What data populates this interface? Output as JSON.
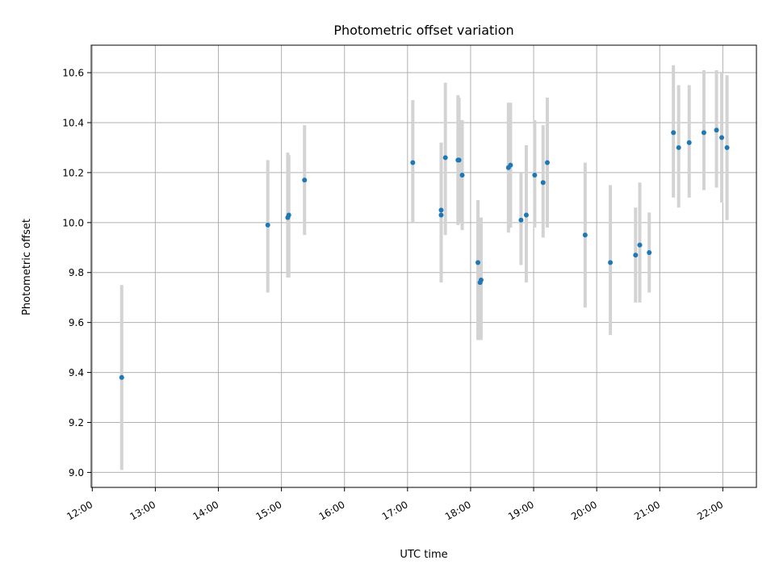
{
  "chart_data": {
    "type": "scatter",
    "title": "Photometric offset variation",
    "xlabel": "UTC time",
    "ylabel": "Photometric offset",
    "x_ticks": [
      "12:00",
      "13:00",
      "14:00",
      "15:00",
      "16:00",
      "17:00",
      "18:00",
      "19:00",
      "20:00",
      "21:00",
      "22:00"
    ],
    "y_ticks": [
      "9.0",
      "9.2",
      "9.4",
      "9.6",
      "9.8",
      "10.0",
      "10.2",
      "10.4",
      "10.6"
    ],
    "xlim": [
      "11:59",
      "22:32"
    ],
    "ylim": [
      8.94,
      10.71
    ],
    "grid": true,
    "colors": {
      "point": "#1f77b4",
      "errorbar": "#d3d3d3",
      "grid": "#b0b0b0"
    },
    "series": [
      {
        "points": [
          {
            "x": "12:28",
            "y": 9.38,
            "ylo": 9.01,
            "yhi": 9.75
          },
          {
            "x": "14:47",
            "y": 9.99,
            "ylo": 9.72,
            "yhi": 10.25
          },
          {
            "x": "15:06",
            "y": 10.02,
            "ylo": 9.78,
            "yhi": 10.28
          },
          {
            "x": "15:07",
            "y": 10.03,
            "ylo": 9.78,
            "yhi": 10.27
          },
          {
            "x": "15:22",
            "y": 10.17,
            "ylo": 9.95,
            "yhi": 10.39
          },
          {
            "x": "17:05",
            "y": 10.24,
            "ylo": 10.0,
            "yhi": 10.49
          },
          {
            "x": "17:32",
            "y": 10.03,
            "ylo": 9.76,
            "yhi": 10.32
          },
          {
            "x": "17:32",
            "y": 10.05,
            "ylo": 9.79,
            "yhi": 10.32
          },
          {
            "x": "17:36",
            "y": 10.26,
            "ylo": 9.95,
            "yhi": 10.56
          },
          {
            "x": "17:48",
            "y": 10.25,
            "ylo": 9.99,
            "yhi": 10.51
          },
          {
            "x": "17:49",
            "y": 10.25,
            "ylo": 10.0,
            "yhi": 10.5
          },
          {
            "x": "17:52",
            "y": 10.19,
            "ylo": 9.97,
            "yhi": 10.41
          },
          {
            "x": "18:07",
            "y": 9.84,
            "ylo": 9.53,
            "yhi": 10.09
          },
          {
            "x": "18:09",
            "y": 9.76,
            "ylo": 9.53,
            "yhi": 10.02
          },
          {
            "x": "18:10",
            "y": 9.77,
            "ylo": 9.53,
            "yhi": 10.02
          },
          {
            "x": "18:36",
            "y": 10.22,
            "ylo": 9.96,
            "yhi": 10.48
          },
          {
            "x": "18:38",
            "y": 10.23,
            "ylo": 9.98,
            "yhi": 10.48
          },
          {
            "x": "18:48",
            "y": 10.01,
            "ylo": 9.83,
            "yhi": 10.2
          },
          {
            "x": "18:53",
            "y": 10.03,
            "ylo": 9.76,
            "yhi": 10.31
          },
          {
            "x": "19:01",
            "y": 10.19,
            "ylo": 9.98,
            "yhi": 10.41
          },
          {
            "x": "19:09",
            "y": 10.16,
            "ylo": 9.94,
            "yhi": 10.39
          },
          {
            "x": "19:13",
            "y": 10.24,
            "ylo": 9.98,
            "yhi": 10.5
          },
          {
            "x": "19:49",
            "y": 9.95,
            "ylo": 9.66,
            "yhi": 10.24
          },
          {
            "x": "20:13",
            "y": 9.84,
            "ylo": 9.55,
            "yhi": 10.15
          },
          {
            "x": "20:37",
            "y": 9.87,
            "ylo": 9.68,
            "yhi": 10.06
          },
          {
            "x": "20:41",
            "y": 9.91,
            "ylo": 9.68,
            "yhi": 10.16
          },
          {
            "x": "20:50",
            "y": 9.88,
            "ylo": 9.72,
            "yhi": 10.04
          },
          {
            "x": "21:13",
            "y": 10.36,
            "ylo": 10.1,
            "yhi": 10.63
          },
          {
            "x": "21:18",
            "y": 10.3,
            "ylo": 10.06,
            "yhi": 10.55
          },
          {
            "x": "21:28",
            "y": 10.32,
            "ylo": 10.1,
            "yhi": 10.55
          },
          {
            "x": "21:42",
            "y": 10.36,
            "ylo": 10.13,
            "yhi": 10.61
          },
          {
            "x": "21:54",
            "y": 10.37,
            "ylo": 10.14,
            "yhi": 10.61
          },
          {
            "x": "21:59",
            "y": 10.34,
            "ylo": 10.08,
            "yhi": 10.6
          },
          {
            "x": "22:04",
            "y": 10.3,
            "ylo": 10.01,
            "yhi": 10.59
          }
        ]
      }
    ]
  }
}
